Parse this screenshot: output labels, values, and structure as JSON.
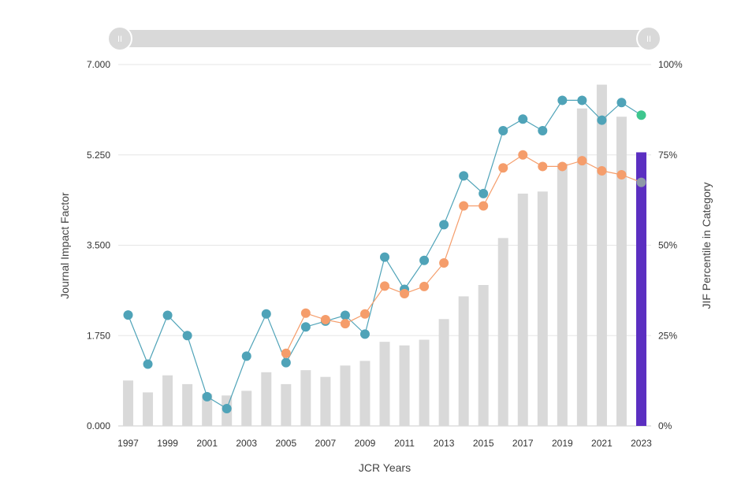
{
  "chart_data": {
    "type": "bar",
    "title": "",
    "xlabel": "JCR Years",
    "ylabel": "Journal Impact Factor",
    "y2label": "JIF Percentile in Category",
    "ylim": [
      0,
      7
    ],
    "y2lim": [
      0,
      100
    ],
    "grid": true,
    "y_ticks": [
      "0.000",
      "1.750",
      "3.500",
      "5.250",
      "7.000"
    ],
    "y2_ticks": [
      "0%",
      "25%",
      "50%",
      "75%",
      "100%"
    ],
    "x_tick_labels": [
      "1997",
      "1999",
      "2001",
      "2003",
      "2005",
      "2007",
      "2009",
      "2011",
      "2013",
      "2015",
      "2017",
      "2019",
      "2021",
      "2023"
    ],
    "categories": [
      "1997",
      "1998",
      "1999",
      "2000",
      "2001",
      "2002",
      "2003",
      "2004",
      "2005",
      "2006",
      "2007",
      "2008",
      "2009",
      "2010",
      "2011",
      "2012",
      "2013",
      "2014",
      "2015",
      "2016",
      "2017",
      "2018",
      "2019",
      "2020",
      "2021",
      "2022",
      "2023"
    ],
    "bars": {
      "values": [
        0.88,
        0.65,
        0.98,
        0.81,
        0.62,
        0.59,
        0.68,
        1.04,
        0.81,
        1.08,
        0.95,
        1.17,
        1.26,
        1.63,
        1.56,
        1.67,
        2.07,
        2.51,
        2.73,
        3.64,
        4.5,
        4.54,
        5.08,
        6.15,
        6.61,
        5.99,
        5.3
      ],
      "color": "#d9d9d9",
      "highlight_color": "#5b2fc1",
      "highlight_index": 26
    },
    "series": [
      {
        "axis": "y2",
        "color": "#4fa3b8",
        "last_point_color": "#3ec68e",
        "values": [
          30.7,
          17.1,
          30.6,
          25.0,
          8.1,
          4.8,
          19.3,
          31.0,
          17.5,
          27.4,
          29.0,
          30.6,
          25.4,
          46.7,
          37.8,
          45.8,
          55.7,
          69.2,
          64.3,
          81.7,
          84.9,
          81.7,
          90.1,
          90.1,
          84.6,
          89.5,
          86.0
        ]
      },
      {
        "axis": "y2",
        "color": "#f59d6b",
        "last_point_color": "#8f9aa8",
        "values": [
          null,
          null,
          null,
          null,
          null,
          null,
          null,
          null,
          20.1,
          31.2,
          29.4,
          28.3,
          31.0,
          38.7,
          36.6,
          38.6,
          45.1,
          60.9,
          60.9,
          71.4,
          75.0,
          71.8,
          71.8,
          73.4,
          70.6,
          69.5,
          67.4
        ]
      }
    ]
  },
  "range_slider": {
    "start_label": "II",
    "end_label": "II"
  }
}
